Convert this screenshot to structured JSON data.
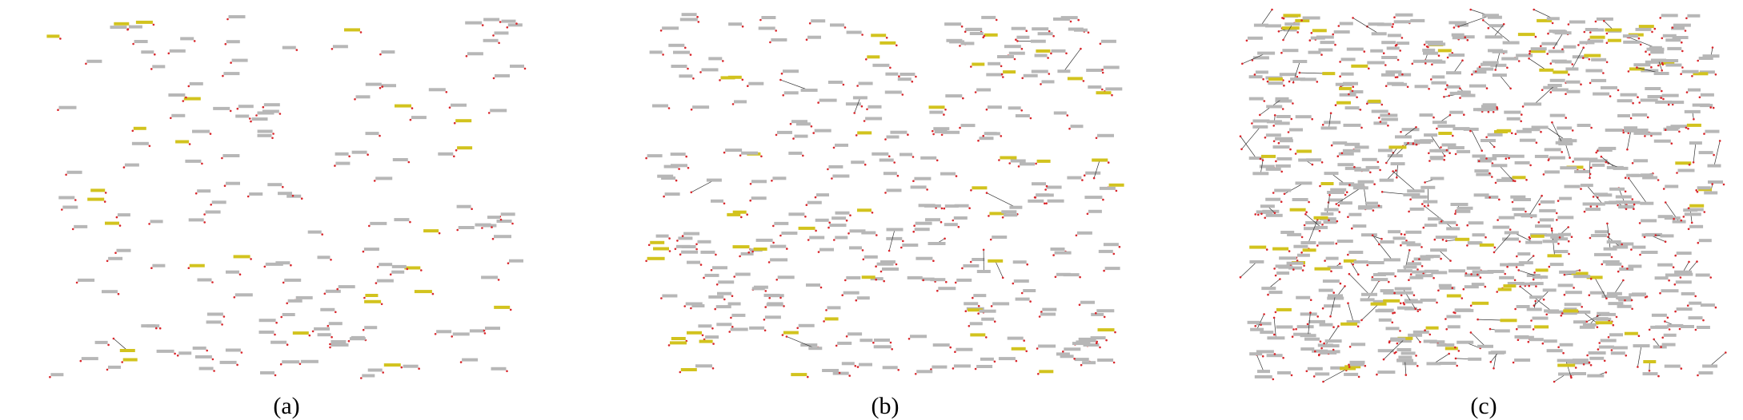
{
  "figure": {
    "panels": [
      {
        "id": "a",
        "caption": "(a)",
        "label_count": 170,
        "highlight_ratio": 0.12,
        "leader_ratio": 0.03,
        "seed": 11
      },
      {
        "id": "b",
        "caption": "(b)",
        "label_count": 330,
        "highlight_ratio": 0.12,
        "leader_ratio": 0.05,
        "seed": 23
      },
      {
        "id": "c",
        "caption": "(c)",
        "label_count": 720,
        "highlight_ratio": 0.1,
        "leader_ratio": 0.22,
        "seed": 37
      }
    ],
    "colors": {
      "label": "#b7b7b7",
      "highlight": "#d2c31e",
      "anchor": "#d9262b",
      "leader": "#333333",
      "caption": "#000000"
    }
  }
}
